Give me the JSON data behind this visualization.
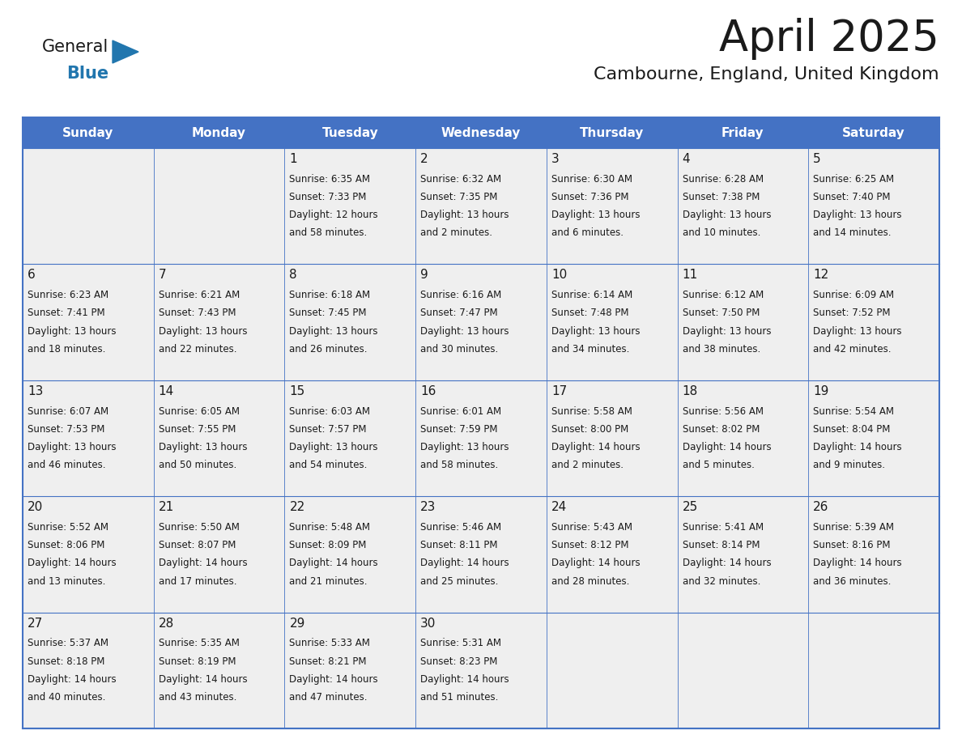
{
  "title": "April 2025",
  "subtitle": "Cambourne, England, United Kingdom",
  "header_bg_color": "#4472C4",
  "header_text_color": "#FFFFFF",
  "cell_bg_color": "#EFEFEF",
  "grid_line_color": "#4472C4",
  "text_color": "#1a1a1a",
  "day_names": [
    "Sunday",
    "Monday",
    "Tuesday",
    "Wednesday",
    "Thursday",
    "Friday",
    "Saturday"
  ],
  "logo_color1": "#1a1a1a",
  "logo_color2": "#2176AE",
  "logo_triangle_color": "#2176AE",
  "title_color": "#1a1a1a",
  "subtitle_color": "#1a1a1a",
  "days": [
    {
      "date": 1,
      "col": 2,
      "row": 0,
      "sunrise": "6:35 AM",
      "sunset": "7:33 PM",
      "daylight": "12 hours and 58 minutes"
    },
    {
      "date": 2,
      "col": 3,
      "row": 0,
      "sunrise": "6:32 AM",
      "sunset": "7:35 PM",
      "daylight": "13 hours and 2 minutes"
    },
    {
      "date": 3,
      "col": 4,
      "row": 0,
      "sunrise": "6:30 AM",
      "sunset": "7:36 PM",
      "daylight": "13 hours and 6 minutes"
    },
    {
      "date": 4,
      "col": 5,
      "row": 0,
      "sunrise": "6:28 AM",
      "sunset": "7:38 PM",
      "daylight": "13 hours and 10 minutes"
    },
    {
      "date": 5,
      "col": 6,
      "row": 0,
      "sunrise": "6:25 AM",
      "sunset": "7:40 PM",
      "daylight": "13 hours and 14 minutes"
    },
    {
      "date": 6,
      "col": 0,
      "row": 1,
      "sunrise": "6:23 AM",
      "sunset": "7:41 PM",
      "daylight": "13 hours and 18 minutes"
    },
    {
      "date": 7,
      "col": 1,
      "row": 1,
      "sunrise": "6:21 AM",
      "sunset": "7:43 PM",
      "daylight": "13 hours and 22 minutes"
    },
    {
      "date": 8,
      "col": 2,
      "row": 1,
      "sunrise": "6:18 AM",
      "sunset": "7:45 PM",
      "daylight": "13 hours and 26 minutes"
    },
    {
      "date": 9,
      "col": 3,
      "row": 1,
      "sunrise": "6:16 AM",
      "sunset": "7:47 PM",
      "daylight": "13 hours and 30 minutes"
    },
    {
      "date": 10,
      "col": 4,
      "row": 1,
      "sunrise": "6:14 AM",
      "sunset": "7:48 PM",
      "daylight": "13 hours and 34 minutes"
    },
    {
      "date": 11,
      "col": 5,
      "row": 1,
      "sunrise": "6:12 AM",
      "sunset": "7:50 PM",
      "daylight": "13 hours and 38 minutes"
    },
    {
      "date": 12,
      "col": 6,
      "row": 1,
      "sunrise": "6:09 AM",
      "sunset": "7:52 PM",
      "daylight": "13 hours and 42 minutes"
    },
    {
      "date": 13,
      "col": 0,
      "row": 2,
      "sunrise": "6:07 AM",
      "sunset": "7:53 PM",
      "daylight": "13 hours and 46 minutes"
    },
    {
      "date": 14,
      "col": 1,
      "row": 2,
      "sunrise": "6:05 AM",
      "sunset": "7:55 PM",
      "daylight": "13 hours and 50 minutes"
    },
    {
      "date": 15,
      "col": 2,
      "row": 2,
      "sunrise": "6:03 AM",
      "sunset": "7:57 PM",
      "daylight": "13 hours and 54 minutes"
    },
    {
      "date": 16,
      "col": 3,
      "row": 2,
      "sunrise": "6:01 AM",
      "sunset": "7:59 PM",
      "daylight": "13 hours and 58 minutes"
    },
    {
      "date": 17,
      "col": 4,
      "row": 2,
      "sunrise": "5:58 AM",
      "sunset": "8:00 PM",
      "daylight": "14 hours and 2 minutes"
    },
    {
      "date": 18,
      "col": 5,
      "row": 2,
      "sunrise": "5:56 AM",
      "sunset": "8:02 PM",
      "daylight": "14 hours and 5 minutes"
    },
    {
      "date": 19,
      "col": 6,
      "row": 2,
      "sunrise": "5:54 AM",
      "sunset": "8:04 PM",
      "daylight": "14 hours and 9 minutes"
    },
    {
      "date": 20,
      "col": 0,
      "row": 3,
      "sunrise": "5:52 AM",
      "sunset": "8:06 PM",
      "daylight": "14 hours and 13 minutes"
    },
    {
      "date": 21,
      "col": 1,
      "row": 3,
      "sunrise": "5:50 AM",
      "sunset": "8:07 PM",
      "daylight": "14 hours and 17 minutes"
    },
    {
      "date": 22,
      "col": 2,
      "row": 3,
      "sunrise": "5:48 AM",
      "sunset": "8:09 PM",
      "daylight": "14 hours and 21 minutes"
    },
    {
      "date": 23,
      "col": 3,
      "row": 3,
      "sunrise": "5:46 AM",
      "sunset": "8:11 PM",
      "daylight": "14 hours and 25 minutes"
    },
    {
      "date": 24,
      "col": 4,
      "row": 3,
      "sunrise": "5:43 AM",
      "sunset": "8:12 PM",
      "daylight": "14 hours and 28 minutes"
    },
    {
      "date": 25,
      "col": 5,
      "row": 3,
      "sunrise": "5:41 AM",
      "sunset": "8:14 PM",
      "daylight": "14 hours and 32 minutes"
    },
    {
      "date": 26,
      "col": 6,
      "row": 3,
      "sunrise": "5:39 AM",
      "sunset": "8:16 PM",
      "daylight": "14 hours and 36 minutes"
    },
    {
      "date": 27,
      "col": 0,
      "row": 4,
      "sunrise": "5:37 AM",
      "sunset": "8:18 PM",
      "daylight": "14 hours and 40 minutes"
    },
    {
      "date": 28,
      "col": 1,
      "row": 4,
      "sunrise": "5:35 AM",
      "sunset": "8:19 PM",
      "daylight": "14 hours and 43 minutes"
    },
    {
      "date": 29,
      "col": 2,
      "row": 4,
      "sunrise": "5:33 AM",
      "sunset": "8:21 PM",
      "daylight": "14 hours and 47 minutes"
    },
    {
      "date": 30,
      "col": 3,
      "row": 4,
      "sunrise": "5:31 AM",
      "sunset": "8:23 PM",
      "daylight": "14 hours and 51 minutes"
    }
  ]
}
